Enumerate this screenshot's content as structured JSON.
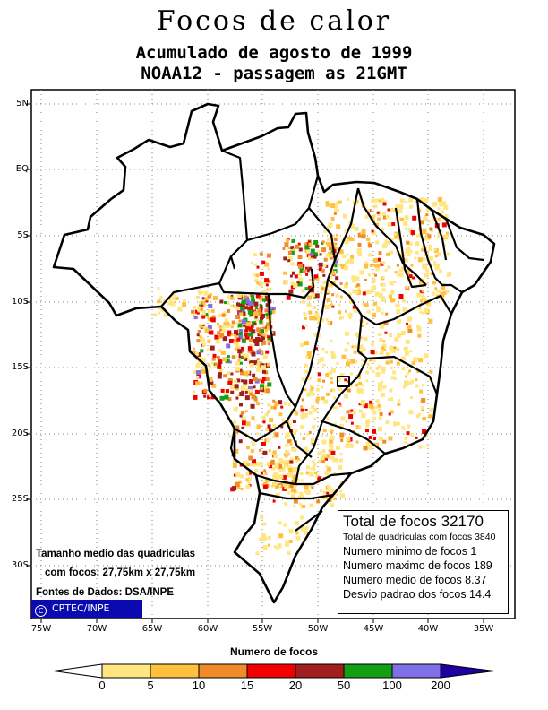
{
  "title": "Focos de calor",
  "subtitle": "Acumulado de agosto de 1999",
  "pass_info": "NOAA12 - passagem as 21GMT",
  "lat_labels": [
    "5N",
    "EQ",
    "5S",
    "10S",
    "15S",
    "20S",
    "25S",
    "30S"
  ],
  "lon_labels": [
    "75W",
    "70W",
    "65W",
    "60W",
    "55W",
    "50W",
    "45W",
    "40W",
    "35W"
  ],
  "stats": {
    "total": "Total de focos 32170",
    "cells": "Total de quadriculas com focos 3840",
    "min": "Numero minimo de focos 1",
    "max": "Numero maximo de focos 189",
    "mean": "Numero medio de focos 8.37",
    "std": "Desvio padrao dos focos 14.4"
  },
  "notes": {
    "size_line1": "Tamanho medio das quadriculas",
    "size_line2": "com focos: 27,75km x 27,75km",
    "source": "Fontes de Dados: DSA/INPE"
  },
  "credit": {
    "symbol": "C",
    "text": "CPTEC/INPE"
  },
  "legend": {
    "title": "Numero de focos",
    "ticks": [
      "0",
      "5",
      "10",
      "15",
      "20",
      "50",
      "100",
      "200"
    ],
    "colors": [
      "#ffe680",
      "#ffc040",
      "#f08c28",
      "#f00000",
      "#a01e1e",
      "#14a014",
      "#8070e8",
      "#2000a0"
    ]
  },
  "colors": {
    "map_frame": "#000000",
    "grid": "#808080",
    "credit_bg": "#0a0ab0"
  }
}
